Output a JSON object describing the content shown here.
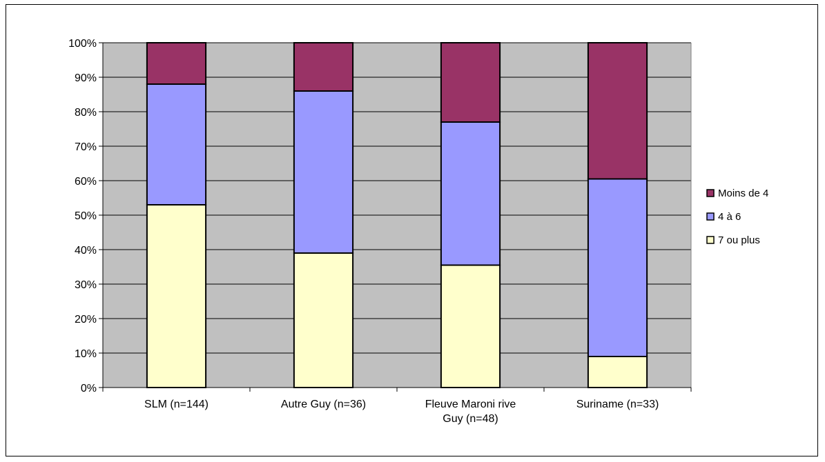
{
  "chart_data": {
    "type": "bar",
    "stacked": true,
    "percent": true,
    "categories": [
      [
        "SLM (n=144)"
      ],
      [
        "Autre Guy (n=36)"
      ],
      [
        "Fleuve Maroni rive",
        "Guy (n=48)"
      ],
      [
        "Suriname (n=33)"
      ]
    ],
    "series": [
      {
        "name": "7 ou plus",
        "color": "#FFFFCC",
        "values": [
          53,
          39,
          35.5,
          9
        ]
      },
      {
        "name": "4 à 6",
        "color": "#9999FF",
        "values": [
          35,
          47,
          41.5,
          51.5
        ]
      },
      {
        "name": "Moins de 4",
        "color": "#993366",
        "values": [
          12,
          14,
          23,
          39.5
        ]
      }
    ],
    "legend_order": [
      "Moins de 4",
      "4 à 6",
      "7 ou plus"
    ],
    "ylim": [
      0,
      100
    ],
    "yticks": [
      "0%",
      "10%",
      "20%",
      "30%",
      "40%",
      "50%",
      "60%",
      "70%",
      "80%",
      "90%",
      "100%"
    ],
    "grid": true,
    "plot_background": "#C0C0C0",
    "legend_position": "right"
  }
}
